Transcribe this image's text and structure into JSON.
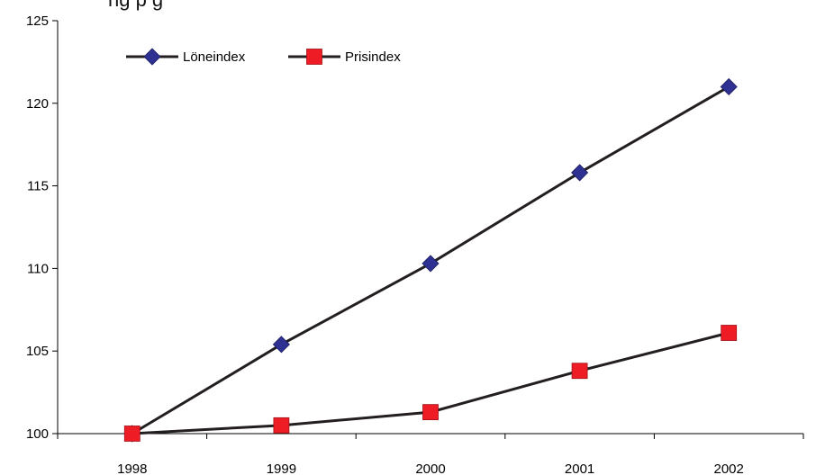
{
  "title_fragment": "ng p                  g",
  "chart_data": {
    "type": "line",
    "title": "",
    "xlabel": "",
    "ylabel": "",
    "x": [
      "1998",
      "1999",
      "2000",
      "2001",
      "2002"
    ],
    "ylim": [
      100,
      125
    ],
    "yticks": [
      100,
      105,
      110,
      115,
      120,
      125
    ],
    "grid": false,
    "legend_position": "top-left",
    "series": [
      {
        "name": "Löneindex",
        "values": [
          100,
          105.4,
          110.3,
          115.8,
          121.0
        ],
        "color": "#2e3192",
        "marker": "diamond"
      },
      {
        "name": "Prisindex",
        "values": [
          100,
          100.5,
          101.3,
          103.8,
          106.1
        ],
        "color": "#ee1c25",
        "marker": "square"
      }
    ]
  }
}
